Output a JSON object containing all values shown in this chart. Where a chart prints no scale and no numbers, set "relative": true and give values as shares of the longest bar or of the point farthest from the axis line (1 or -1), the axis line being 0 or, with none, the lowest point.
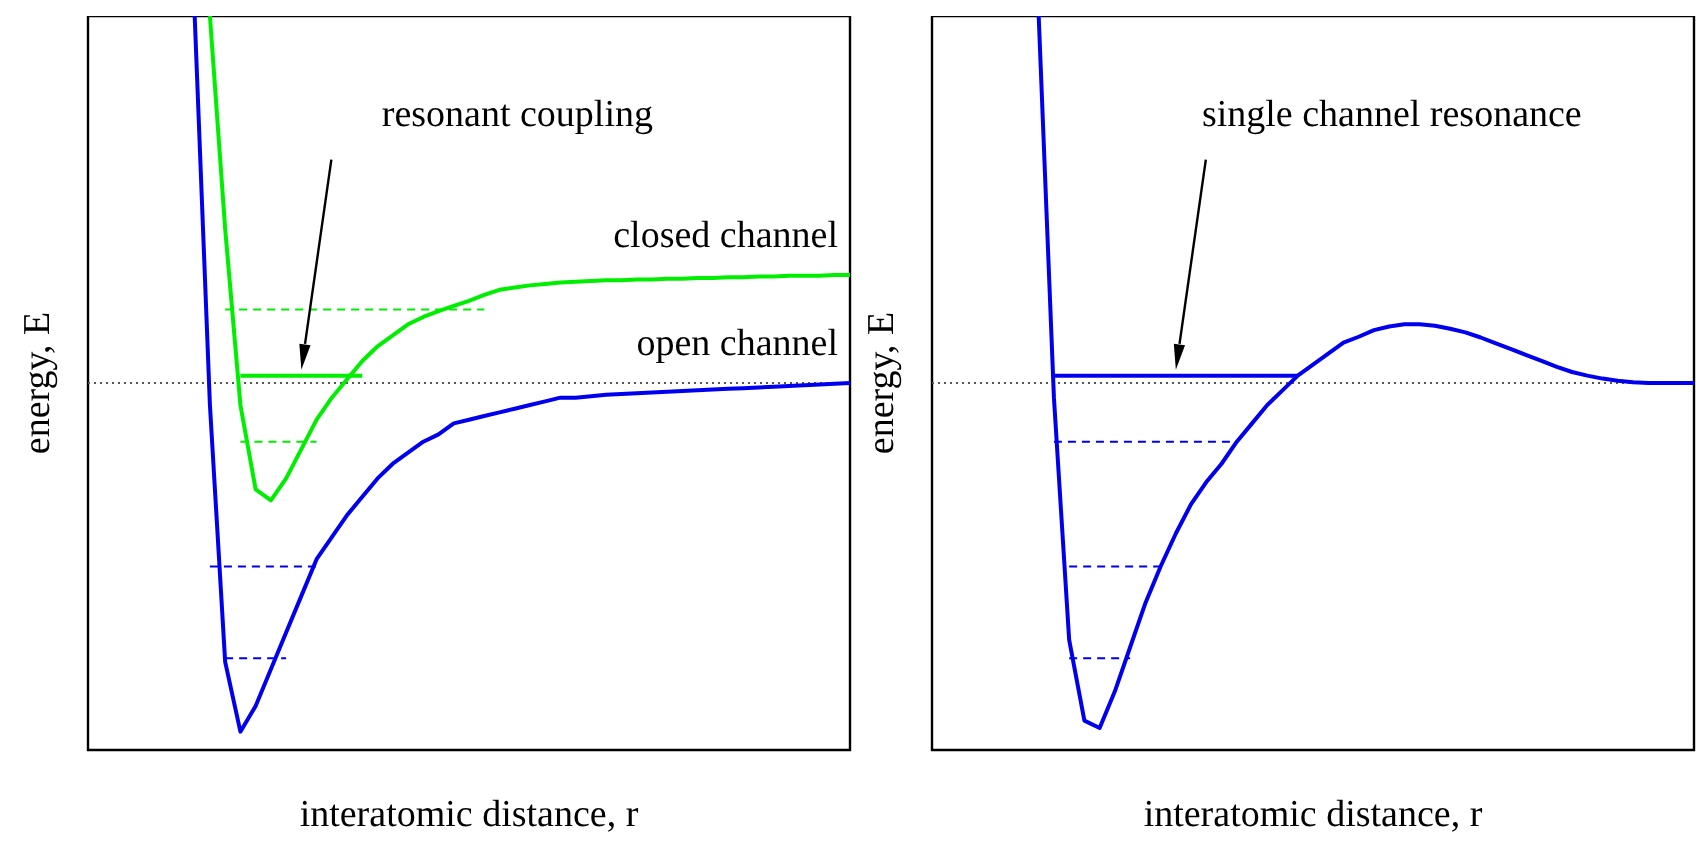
{
  "chart_data": [
    {
      "type": "line",
      "relative": true,
      "xlabel": "interatomic distance, r",
      "ylabel": "energy, E",
      "categories": [
        null,
        null,
        null,
        null,
        null,
        null,
        null,
        null,
        null,
        null,
        null,
        null,
        null,
        null,
        null,
        null,
        null,
        null,
        null,
        null,
        null,
        null,
        null,
        null,
        null,
        null,
        null,
        null,
        null,
        null,
        null,
        null,
        null,
        null,
        null,
        null,
        null,
        null,
        null,
        null,
        null,
        null,
        null,
        null,
        null,
        null,
        null,
        null,
        null,
        null,
        null
      ],
      "series": [
        {
          "name": "open channel",
          "color": "#0000ee",
          "values": [
            null,
            null,
            null,
            null,
            null,
            null,
            null,
            1,
            0.47,
            0.12,
            0.025,
            0.06,
            0.11,
            0.16,
            0.21,
            0.26,
            0.29,
            0.32,
            0.345,
            0.37,
            0.39,
            0.405,
            0.42,
            0.43,
            0.445,
            0.45,
            0.455,
            0.46,
            0.465,
            0.47,
            0.475,
            0.48,
            0.48,
            0.482,
            0.484,
            0.485,
            0.486,
            0.487,
            0.488,
            0.489,
            0.49,
            0.491,
            0.492,
            0.493,
            0.494,
            0.495,
            0.496,
            0.497,
            0.498,
            0.499,
            0.5
          ]
        },
        {
          "name": "closed channel",
          "color": "#00ee00",
          "values": [
            null,
            null,
            null,
            null,
            null,
            null,
            null,
            null,
            1,
            0.71,
            0.47,
            0.355,
            0.34,
            0.37,
            0.41,
            0.45,
            0.48,
            0.505,
            0.53,
            0.55,
            0.565,
            0.58,
            0.59,
            0.598,
            0.605,
            0.612,
            0.62,
            0.627,
            0.63,
            0.633,
            0.635,
            0.637,
            0.638,
            0.639,
            0.64,
            0.64,
            0.641,
            0.641,
            0.642,
            0.642,
            0.643,
            0.643,
            0.644,
            0.644,
            0.645,
            0.645,
            0.646,
            0.646,
            0.646,
            0.647,
            0.647
          ]
        },
        {
          "color": "#00ee00",
          "line_style": "solid",
          "values": [
            null,
            null,
            null,
            null,
            null,
            null,
            null,
            null,
            null,
            null,
            0.51,
            0.51,
            0.51,
            0.51,
            0.51,
            0.51,
            0.51,
            0.51,
            0.51,
            null,
            null,
            null,
            null,
            null,
            null,
            null,
            null,
            null,
            null,
            null,
            null,
            null,
            null,
            null,
            null,
            null,
            null,
            null,
            null,
            null,
            null,
            null,
            null,
            null,
            null,
            null,
            null,
            null,
            null,
            null,
            null
          ]
        },
        {
          "color": "#00ee00",
          "line_style": "dashed",
          "values": [
            null,
            null,
            null,
            null,
            null,
            null,
            null,
            null,
            null,
            0.6,
            0.6,
            0.6,
            0.6,
            0.6,
            0.6,
            0.6,
            0.6,
            0.6,
            0.6,
            0.6,
            0.6,
            0.6,
            0.6,
            0.6,
            0.6,
            0.6,
            0.6,
            null,
            null,
            null,
            null,
            null,
            null,
            null,
            null,
            null,
            null,
            null,
            null,
            null,
            null,
            null,
            null,
            null,
            null,
            null,
            null,
            null,
            null,
            null,
            null
          ]
        },
        {
          "color": "#00ee00",
          "line_style": "dashed",
          "values": [
            null,
            null,
            null,
            null,
            null,
            null,
            null,
            null,
            null,
            null,
            0.42,
            0.42,
            0.42,
            0.42,
            0.42,
            0.42,
            null,
            null,
            null,
            null,
            null,
            null,
            null,
            null,
            null,
            null,
            null,
            null,
            null,
            null,
            null,
            null,
            null,
            null,
            null,
            null,
            null,
            null,
            null,
            null,
            null,
            null,
            null,
            null,
            null,
            null,
            null,
            null,
            null,
            null,
            null
          ]
        },
        {
          "color": "#0000ee",
          "line_style": "dashed",
          "values": [
            null,
            null,
            null,
            null,
            null,
            null,
            null,
            null,
            0.25,
            0.25,
            0.25,
            0.25,
            0.25,
            0.25,
            0.25,
            0.25,
            null,
            null,
            null,
            null,
            null,
            null,
            null,
            null,
            null,
            null,
            null,
            null,
            null,
            null,
            null,
            null,
            null,
            null,
            null,
            null,
            null,
            null,
            null,
            null,
            null,
            null,
            null,
            null,
            null,
            null,
            null,
            null,
            null,
            null,
            null
          ]
        },
        {
          "color": "#0000ee",
          "line_style": "dashed",
          "values": [
            null,
            null,
            null,
            null,
            null,
            null,
            null,
            null,
            null,
            0.125,
            0.125,
            0.125,
            0.125,
            0.125,
            null,
            null,
            null,
            null,
            null,
            null,
            null,
            null,
            null,
            null,
            null,
            null,
            null,
            null,
            null,
            null,
            null,
            null,
            null,
            null,
            null,
            null,
            null,
            null,
            null,
            null,
            null,
            null,
            null,
            null,
            null,
            null,
            null,
            null,
            null,
            null,
            null
          ]
        }
      ],
      "ref_lines": [
        {
          "axis": "y",
          "value": 0.5,
          "color": "#555555",
          "line_style": "dotted"
        }
      ],
      "annotations": [
        "resonant coupling"
      ]
    },
    {
      "type": "line",
      "relative": true,
      "xlabel": "interatomic distance, r",
      "ylabel": "energy, E",
      "categories": [
        null,
        null,
        null,
        null,
        null,
        null,
        null,
        null,
        null,
        null,
        null,
        null,
        null,
        null,
        null,
        null,
        null,
        null,
        null,
        null,
        null,
        null,
        null,
        null,
        null,
        null,
        null,
        null,
        null,
        null,
        null,
        null,
        null,
        null,
        null,
        null,
        null,
        null,
        null,
        null,
        null,
        null,
        null,
        null,
        null,
        null,
        null,
        null,
        null,
        null,
        null
      ],
      "series": [
        {
          "color": "#0000ee",
          "values": [
            null,
            null,
            null,
            null,
            null,
            null,
            null,
            1,
            0.48,
            0.15,
            0.04,
            0.03,
            0.08,
            0.14,
            0.2,
            0.25,
            0.295,
            0.335,
            0.365,
            0.39,
            0.42,
            0.445,
            0.47,
            0.49,
            0.51,
            0.525,
            0.54,
            0.555,
            0.563,
            0.572,
            0.577,
            0.58,
            0.58,
            0.578,
            0.574,
            0.569,
            0.562,
            0.554,
            0.546,
            0.538,
            0.53,
            0.522,
            0.515,
            0.51,
            0.506,
            0.503,
            0.501,
            0.5,
            0.5,
            0.5,
            0.5
          ]
        },
        {
          "color": "#0000ee",
          "line_style": "solid",
          "values": [
            null,
            null,
            null,
            null,
            null,
            null,
            null,
            null,
            0.51,
            0.51,
            0.51,
            0.51,
            0.51,
            0.51,
            0.51,
            0.51,
            0.51,
            0.51,
            0.51,
            0.51,
            0.51,
            0.51,
            0.51,
            0.51,
            0.51,
            null,
            null,
            null,
            null,
            null,
            null,
            null,
            null,
            null,
            null,
            null,
            null,
            null,
            null,
            null,
            null,
            null,
            null,
            null,
            null,
            null,
            null,
            null,
            null,
            null,
            null
          ]
        },
        {
          "color": "#0000ee",
          "line_style": "dashed",
          "values": [
            null,
            null,
            null,
            null,
            null,
            null,
            null,
            null,
            0.42,
            0.42,
            0.42,
            0.42,
            0.42,
            0.42,
            0.42,
            0.42,
            0.42,
            0.42,
            0.42,
            0.42,
            0.42,
            null,
            null,
            null,
            null,
            null,
            null,
            null,
            null,
            null,
            null,
            null,
            null,
            null,
            null,
            null,
            null,
            null,
            null,
            null,
            null,
            null,
            null,
            null,
            null,
            null,
            null,
            null,
            null,
            null,
            null
          ]
        },
        {
          "color": "#0000ee",
          "line_style": "dashed",
          "values": [
            null,
            null,
            null,
            null,
            null,
            null,
            null,
            null,
            null,
            0.25,
            0.25,
            0.25,
            0.25,
            0.25,
            0.25,
            0.25,
            null,
            null,
            null,
            null,
            null,
            null,
            null,
            null,
            null,
            null,
            null,
            null,
            null,
            null,
            null,
            null,
            null,
            null,
            null,
            null,
            null,
            null,
            null,
            null,
            null,
            null,
            null,
            null,
            null,
            null,
            null,
            null,
            null,
            null,
            null
          ]
        },
        {
          "color": "#0000ee",
          "line_style": "dashed",
          "values": [
            null,
            null,
            null,
            null,
            null,
            null,
            null,
            null,
            null,
            0.125,
            0.125,
            0.125,
            0.125,
            0.125,
            null,
            null,
            null,
            null,
            null,
            null,
            null,
            null,
            null,
            null,
            null,
            null,
            null,
            null,
            null,
            null,
            null,
            null,
            null,
            null,
            null,
            null,
            null,
            null,
            null,
            null,
            null,
            null,
            null,
            null,
            null,
            null,
            null,
            null,
            null,
            null,
            null
          ]
        }
      ],
      "ref_lines": [
        {
          "axis": "y",
          "value": 0.5,
          "color": "#555555",
          "line_style": "dotted"
        }
      ],
      "annotations": [
        "single channel resonance"
      ]
    }
  ]
}
